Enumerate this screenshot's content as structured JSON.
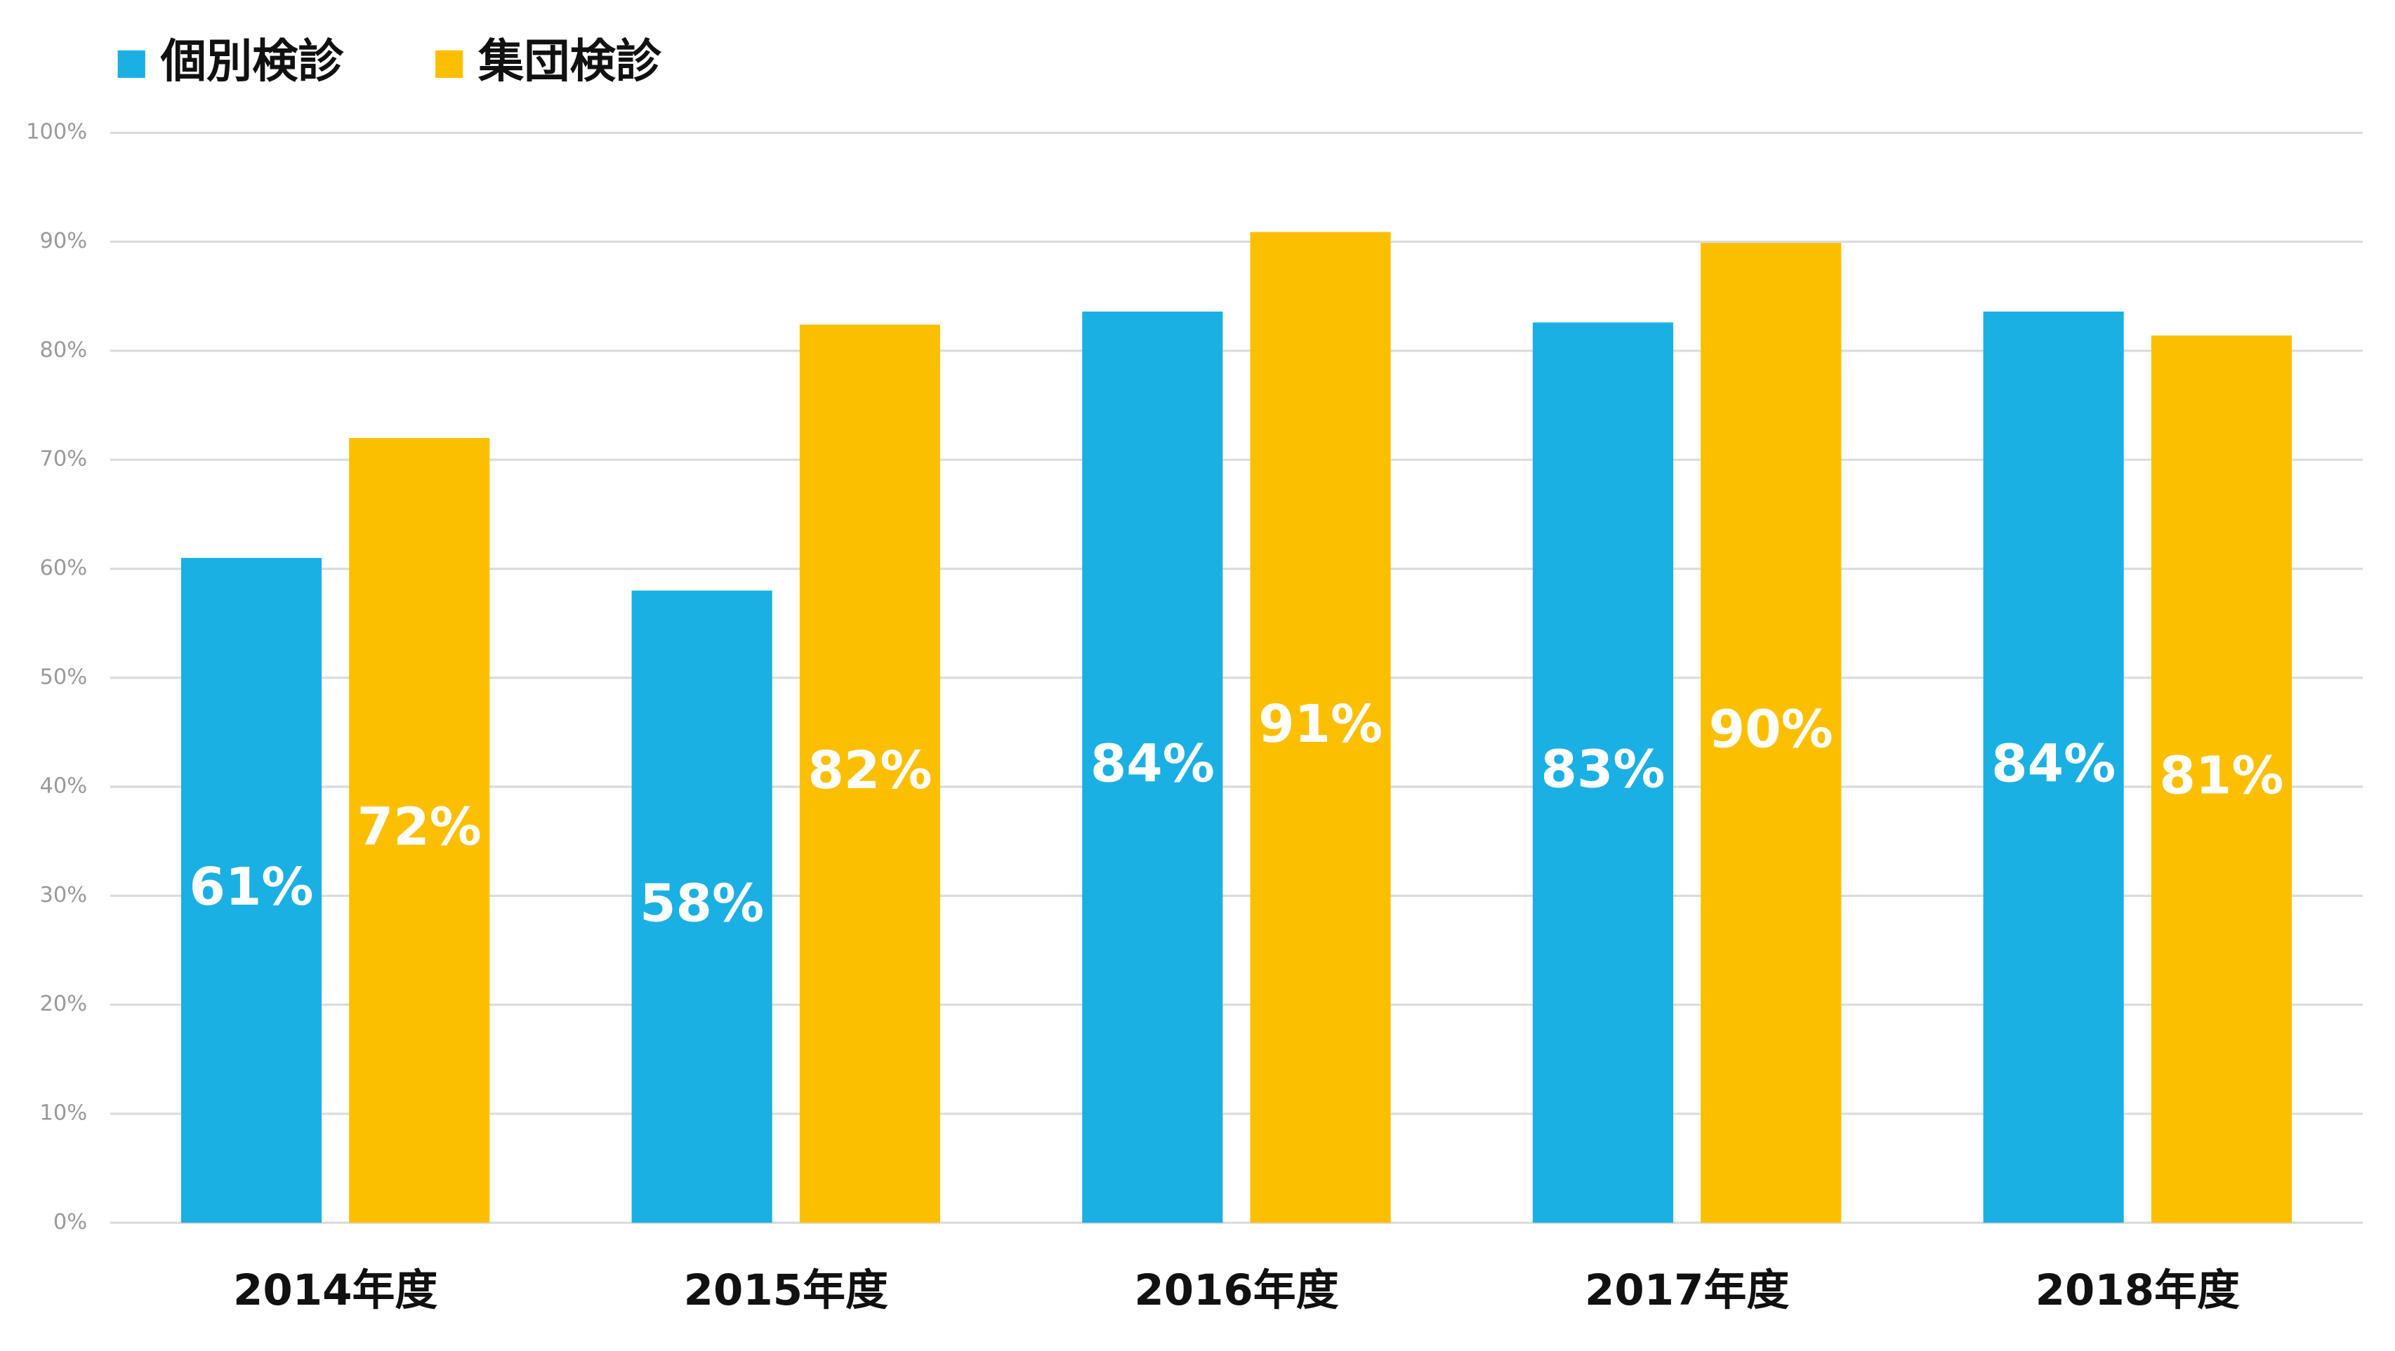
{
  "chart_data": {
    "type": "bar",
    "categories": [
      "2014年度",
      "2015年度",
      "2016年度",
      "2017年度",
      "2018年度"
    ],
    "series": [
      {
        "name": "個別検診",
        "color": "#1ab0e3",
        "values": [
          61,
          58,
          83.6,
          82.6,
          83.6
        ],
        "value_labels": [
          "61%",
          "58%",
          "84%",
          "83%",
          "84%"
        ]
      },
      {
        "name": "集団検診",
        "color": "#fcbf00",
        "values": [
          72,
          82.4,
          90.9,
          89.9,
          81.4
        ],
        "value_labels": [
          "72%",
          "82%",
          "91%",
          "90%",
          "81%"
        ]
      }
    ],
    "ylim": [
      0,
      100
    ],
    "yticks": [
      {
        "value": 0,
        "label": "0%"
      },
      {
        "value": 10,
        "label": "10%"
      },
      {
        "value": 20,
        "label": "20%"
      },
      {
        "value": 30,
        "label": "30%"
      },
      {
        "value": 40,
        "label": "40%"
      },
      {
        "value": 50,
        "label": "50%"
      },
      {
        "value": 60,
        "label": "60%"
      },
      {
        "value": 70,
        "label": "70%"
      },
      {
        "value": 80,
        "label": "80%"
      },
      {
        "value": 90,
        "label": "90%"
      },
      {
        "value": 100,
        "label": "100%"
      }
    ],
    "grid": true,
    "legend": "top-left"
  }
}
